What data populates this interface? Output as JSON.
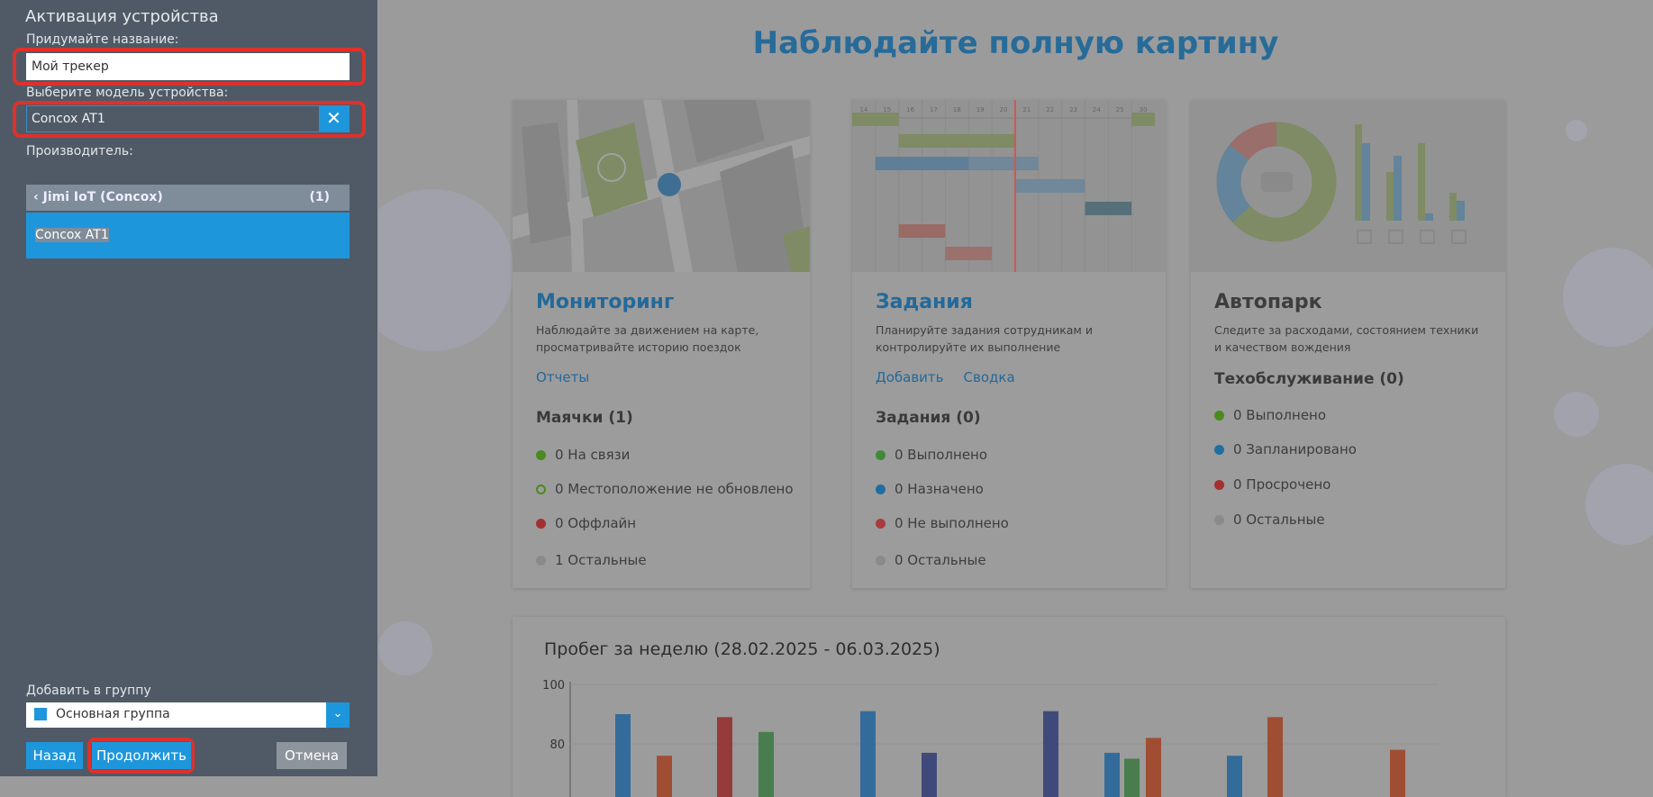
{
  "sidebar": {
    "title": "Активация устройства",
    "name_label": "Придумайте название:",
    "name_value": "Мой трекер",
    "model_label": "Выберите модель устройства:",
    "model_value": "Concox AT1",
    "clear_icon": "close-icon",
    "manufacturer_label": "Производитель:",
    "manufacturer_group": {
      "name": "Jimi IoT (Concox)",
      "count": "(1)"
    },
    "selected_model": "Concox AT1",
    "group_label": "Добавить в группу",
    "group_value": "Основная группа",
    "buttons": {
      "back": "Назад",
      "continue": "Продолжить",
      "cancel": "Отмена"
    }
  },
  "main": {
    "title": "Наблюдайте полную картину",
    "cards": [
      {
        "title": "Мониторинг",
        "desc": "Наблюдайте за движением на карте, просматривайте историю поездок",
        "links": [
          "Отчеты"
        ],
        "section": "Маячки (1)",
        "items": [
          {
            "text": "0 На связи",
            "color": "#4a8a1e"
          },
          {
            "text": "0 Местоположение не обновлено",
            "color": "#4a8a1e",
            "hollow": true
          },
          {
            "text": "0 Оффлайн",
            "color": "#a33030"
          },
          {
            "text": "1 Остальные",
            "color": "#8a8a8a"
          }
        ]
      },
      {
        "title": "Задания",
        "desc": "Планируйте задания сотрудникам и контролируйте их выполнение",
        "links": [
          "Добавить",
          "Сводка"
        ],
        "section": "Задания (0)",
        "gantt_days": [
          "14",
          "15",
          "16",
          "17",
          "18",
          "19",
          "20",
          "21",
          "22",
          "23",
          "24",
          "25",
          "30"
        ],
        "items": [
          {
            "text": "0 Выполнено",
            "color": "#3f8a38"
          },
          {
            "text": "0 Назначено",
            "color": "#1e6fa0"
          },
          {
            "text": "0 Не выполнено",
            "color": "#a83c3c"
          },
          {
            "text": "0 Остальные",
            "color": "#8a8a8a"
          }
        ]
      },
      {
        "title": "Автопарк",
        "desc": "Следите за расходами, состоянием техники и качеством вождения",
        "links": [],
        "section": "Техобслуживание (0)",
        "items": [
          {
            "text": "0 Выполнено",
            "color": "#4a8a1e"
          },
          {
            "text": "0 Запланировано",
            "color": "#1e6fa0"
          },
          {
            "text": "0 Просрочено",
            "color": "#a33030"
          },
          {
            "text": "0 Остальные",
            "color": "#8a8a8a"
          }
        ]
      }
    ]
  },
  "chart_data": {
    "type": "bar",
    "title": "Пробег за неделю (28.02.2025 - 06.03.2025)",
    "yticks": [
      "100",
      "80"
    ],
    "ylim": [
      60,
      100
    ],
    "grid": true,
    "bars": [
      {
        "value": 90,
        "color": "#336c9b"
      },
      {
        "value": 76,
        "color": "#a04e33"
      },
      {
        "value": 89,
        "color": "#963b3b"
      },
      {
        "value": 84,
        "color": "#4a7d4d"
      },
      {
        "value": 91,
        "color": "#336c9b"
      },
      {
        "value": 77,
        "color": "#404a7a"
      },
      {
        "value": 91,
        "color": "#404a7a"
      },
      {
        "value": 77,
        "color": "#336c9b"
      },
      {
        "value": 75,
        "color": "#4a7d4d"
      },
      {
        "value": 82,
        "color": "#a04e33"
      },
      {
        "value": 76,
        "color": "#336c9b"
      },
      {
        "value": 89,
        "color": "#a04e33"
      },
      {
        "value": 78,
        "color": "#a04e33"
      }
    ]
  }
}
